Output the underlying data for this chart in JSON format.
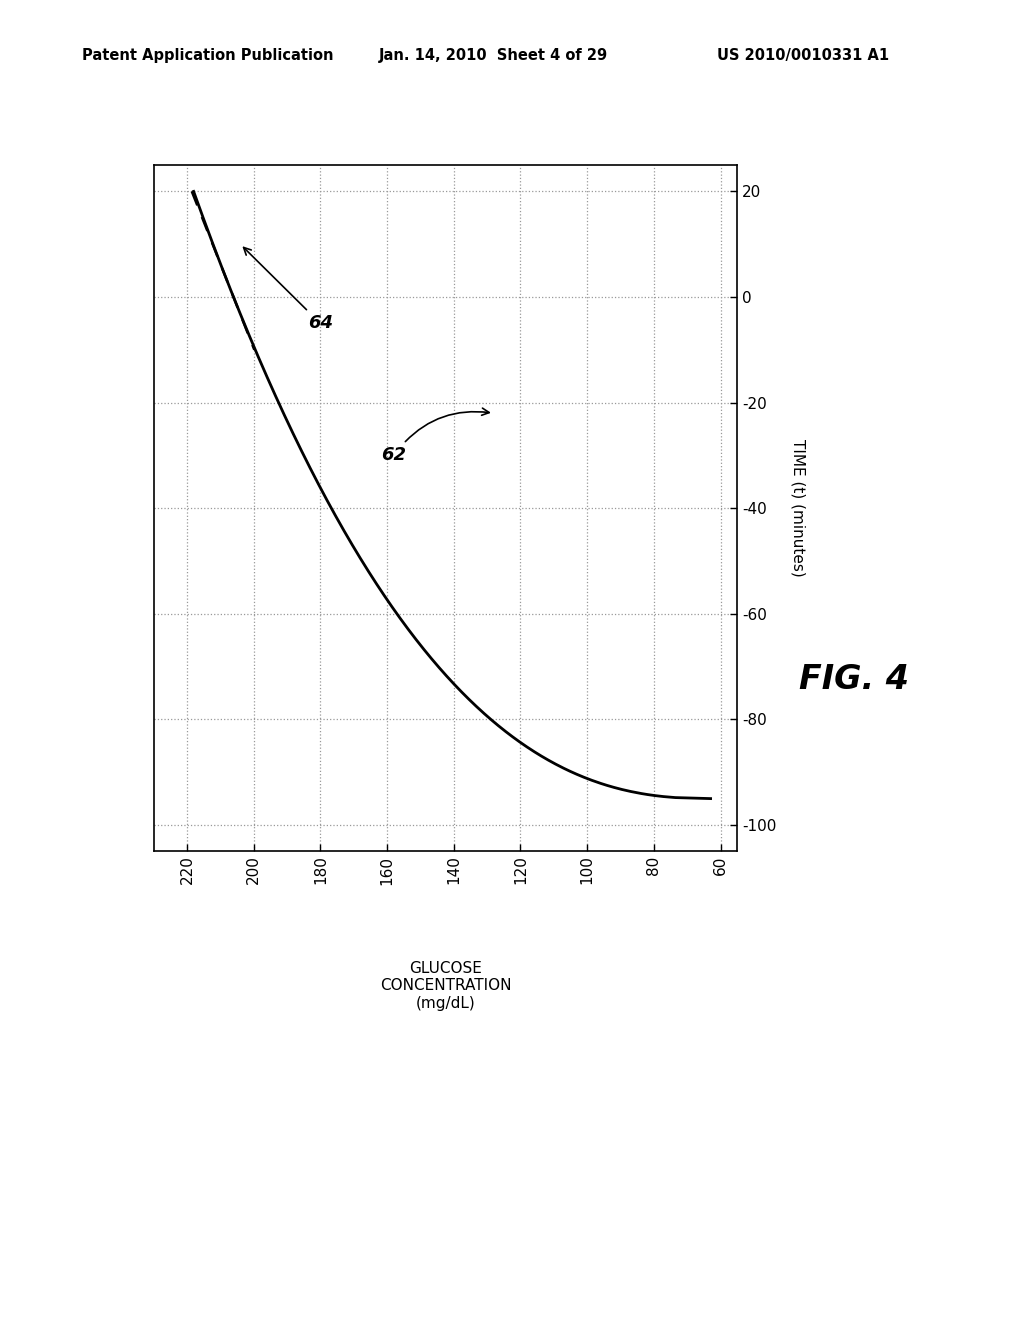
{
  "header_left": "Patent Application Publication",
  "header_mid": "Jan. 14, 2010  Sheet 4 of 29",
  "header_right": "US 2010/0010331 A1",
  "fig_label": "FIG. 4",
  "xlabel_line1": "GLUCOSE",
  "xlabel_line2": "CONCENTRATION",
  "xlabel_line3": "(mg/dL)",
  "ylabel": "TIME (t) (minutes)",
  "xlim": [
    55,
    230
  ],
  "ylim": [
    -105,
    25
  ],
  "xticks": [
    220,
    200,
    180,
    160,
    140,
    120,
    100,
    80,
    60
  ],
  "yticks": [
    -100,
    -80,
    -60,
    -40,
    -20,
    0,
    20
  ],
  "label_62": "62",
  "label_64": "64",
  "bg_color": "#ffffff",
  "line_color": "#000000",
  "grid_color": "#999999",
  "curve_tangent_touch_t": 2,
  "curve_tangent_touch_g": 192
}
